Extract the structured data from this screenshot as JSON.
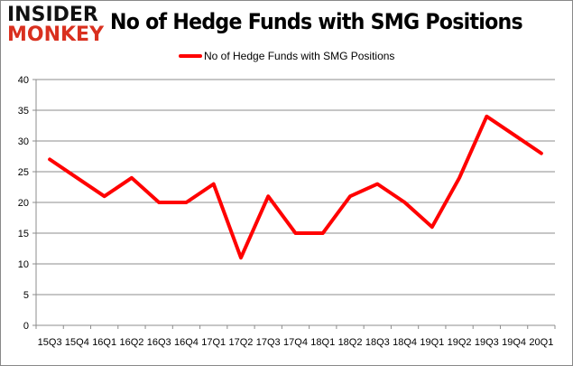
{
  "logo": {
    "line1": "INSIDER",
    "line2": "MONKEY"
  },
  "chart_data": {
    "type": "line",
    "title": "No of Hedge Funds with SMG Positions",
    "xlabel": "",
    "ylabel": "",
    "categories": [
      "15Q3",
      "15Q4",
      "16Q1",
      "16Q2",
      "16Q3",
      "16Q4",
      "17Q1",
      "17Q2",
      "17Q3",
      "17Q4",
      "18Q1",
      "18Q2",
      "18Q3",
      "18Q4",
      "19Q1",
      "19Q2",
      "19Q3",
      "19Q4",
      "20Q1"
    ],
    "series": [
      {
        "name": "No of Hedge Funds with SMG Positions",
        "color": "#ff0000",
        "values": [
          27,
          24,
          21,
          24,
          20,
          20,
          23,
          11,
          21,
          15,
          15,
          21,
          23,
          20,
          16,
          24,
          34,
          31,
          28
        ]
      }
    ],
    "ylim": [
      0,
      40
    ],
    "yticks": [
      "0",
      "5",
      "10",
      "15",
      "20",
      "25",
      "30",
      "35",
      "40"
    ],
    "grid": true,
    "legend": "top-center"
  }
}
